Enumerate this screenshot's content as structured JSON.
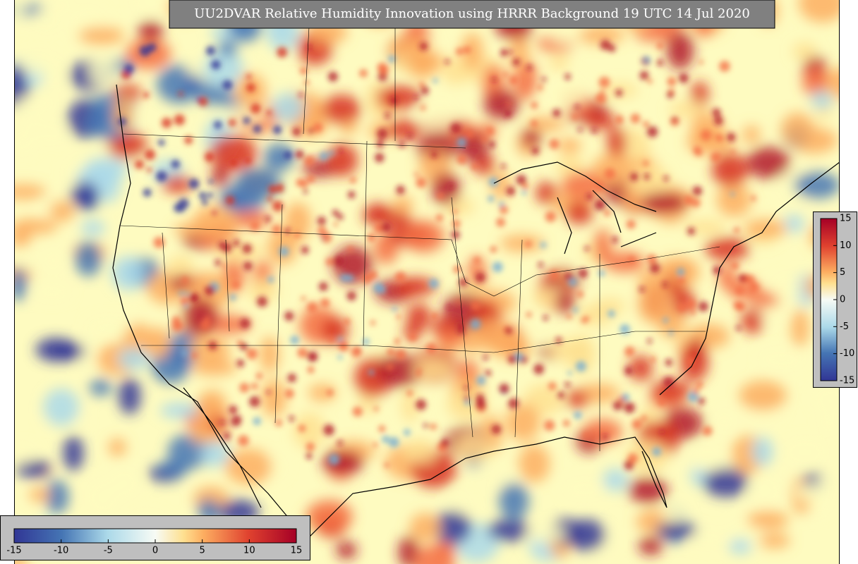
{
  "title": "UU2DVAR Relative Humidity Innovation using HRRR Background 19 UTC 14 Jul 2020",
  "colorbar_bottom": {
    "range": [
      -15,
      15
    ],
    "ticks": [
      -15,
      -10,
      -5,
      0,
      5,
      10,
      15
    ]
  },
  "colorbar_right": {
    "range": [
      -15,
      15
    ],
    "ticks": [
      -15,
      -10,
      -5,
      0,
      5,
      10,
      15
    ]
  }
}
